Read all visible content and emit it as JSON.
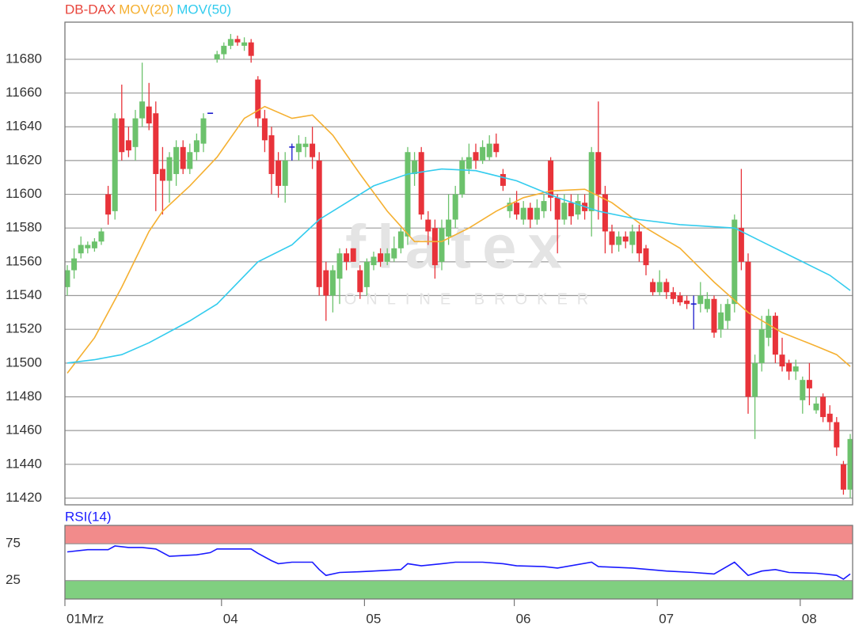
{
  "chart_data": [
    {
      "type": "candlestick",
      "series": [
        {
          "name": "DB-DAX",
          "color": "#e8453c",
          "open": [
            11545,
            11555,
            11565,
            11568,
            11568,
            11572,
            11600,
            11590,
            11645,
            11632,
            11628,
            11645,
            11652,
            11648,
            11615,
            11608,
            11612,
            11628,
            11615,
            11625,
            11630,
            11648,
            11680,
            11683,
            11688,
            11692,
            11688,
            11690,
            11668,
            11645,
            11635,
            11620,
            11605,
            11628,
            11625,
            11628,
            11630,
            11620,
            11555,
            11540,
            11550,
            11565,
            11568,
            11555,
            11545,
            11558,
            11565,
            11560,
            11562,
            11568,
            11575,
            11612,
            11625,
            11585,
            11580,
            11560,
            11575,
            11585,
            11600,
            11615,
            11625,
            11620,
            11622,
            11630,
            11612,
            11590,
            11595,
            11585,
            11592,
            11585,
            11590,
            11620,
            11598,
            11585,
            11595,
            11588,
            11595,
            11590,
            11625,
            11600,
            11578,
            11570,
            11575,
            11570,
            11578,
            11568,
            11548,
            11542,
            11548,
            11542,
            11540,
            11537,
            11535,
            11535,
            11532,
            11538,
            11520,
            11525,
            11535,
            11580,
            11560,
            11480,
            11500,
            11515,
            11528,
            11505,
            11500,
            11495,
            11478,
            11490,
            11472,
            11480,
            11470,
            11465,
            11440,
            11425
          ],
          "high": [
            11558,
            11568,
            11575,
            11572,
            11574,
            11580,
            11605,
            11648,
            11665,
            11640,
            11650,
            11678,
            11666,
            11655,
            11628,
            11625,
            11632,
            11632,
            11630,
            11636,
            11648,
            11648,
            11685,
            11690,
            11695,
            11694,
            11693,
            11692,
            11670,
            11650,
            11640,
            11625,
            11625,
            11630,
            11635,
            11634,
            11640,
            11625,
            11560,
            11558,
            11568,
            11568,
            11568,
            11558,
            11562,
            11566,
            11568,
            11568,
            11575,
            11580,
            11628,
            11625,
            11628,
            11590,
            11585,
            11585,
            11600,
            11605,
            11622,
            11630,
            11630,
            11632,
            11635,
            11636,
            11615,
            11598,
            11602,
            11596,
            11595,
            11597,
            11600,
            11622,
            11600,
            11600,
            11600,
            11600,
            11600,
            11628,
            11655,
            11605,
            11582,
            11578,
            11578,
            11582,
            11582,
            11570,
            11550,
            11555,
            11550,
            11545,
            11542,
            11540,
            11540,
            11548,
            11542,
            11540,
            11535,
            11538,
            11588,
            11615,
            11565,
            11505,
            11528,
            11532,
            11530,
            11515,
            11502,
            11502,
            11492,
            11500,
            11480,
            11482,
            11475,
            11468,
            11442,
            11458
          ],
          "low": [
            11540,
            11550,
            11562,
            11565,
            11566,
            11570,
            11582,
            11585,
            11620,
            11622,
            11620,
            11640,
            11638,
            11590,
            11588,
            11595,
            11605,
            11612,
            11612,
            11620,
            11625,
            11648,
            11678,
            11680,
            11686,
            11688,
            11685,
            11678,
            11640,
            11625,
            11600,
            11598,
            11595,
            11620,
            11620,
            11622,
            11615,
            11540,
            11525,
            11530,
            11535,
            11555,
            11560,
            11538,
            11540,
            11555,
            11557,
            11558,
            11560,
            11565,
            11570,
            11605,
            11585,
            11570,
            11550,
            11555,
            11570,
            11580,
            11598,
            11612,
            11615,
            11618,
            11620,
            11622,
            11602,
            11586,
            11585,
            11582,
            11580,
            11582,
            11586,
            11590,
            11565,
            11582,
            11582,
            11585,
            11585,
            11575,
            11585,
            11565,
            11565,
            11566,
            11568,
            11565,
            11560,
            11552,
            11540,
            11540,
            11538,
            11535,
            11534,
            11532,
            11520,
            11530,
            11530,
            11515,
            11515,
            11520,
            11530,
            11555,
            11470,
            11455,
            11495,
            11510,
            11500,
            11495,
            11490,
            11490,
            11470,
            11475,
            11470,
            11465,
            11460,
            11445,
            11422,
            11420
          ],
          "close": [
            11555,
            11562,
            11570,
            11570,
            11572,
            11578,
            11588,
            11645,
            11625,
            11626,
            11645,
            11655,
            11642,
            11612,
            11608,
            11622,
            11628,
            11615,
            11625,
            11632,
            11645,
            11648,
            11683,
            11688,
            11692,
            11690,
            11690,
            11682,
            11645,
            11632,
            11612,
            11605,
            11620,
            11628,
            11630,
            11630,
            11622,
            11545,
            11540,
            11555,
            11565,
            11560,
            11560,
            11542,
            11560,
            11563,
            11560,
            11565,
            11568,
            11578,
            11625,
            11620,
            11588,
            11578,
            11558,
            11580,
            11585,
            11600,
            11620,
            11622,
            11620,
            11628,
            11630,
            11625,
            11605,
            11595,
            11588,
            11592,
            11585,
            11592,
            11596,
            11598,
            11585,
            11595,
            11587,
            11596,
            11590,
            11625,
            11600,
            11578,
            11570,
            11575,
            11572,
            11578,
            11565,
            11558,
            11542,
            11548,
            11542,
            11538,
            11536,
            11535,
            11535,
            11540,
            11538,
            11518,
            11530,
            11535,
            11585,
            11560,
            11480,
            11500,
            11520,
            11528,
            11505,
            11498,
            11495,
            11498,
            11490,
            11485,
            11476,
            11468,
            11465,
            11450,
            11425,
            11455
          ]
        },
        {
          "name": "MOV(20)",
          "color": "#f5b031",
          "x": [
            0,
            4,
            8,
            12,
            14,
            18,
            22,
            26,
            29,
            33,
            36,
            39,
            43,
            47,
            51,
            55,
            59,
            63,
            67,
            71,
            76,
            80,
            85,
            90,
            95,
            100,
            105,
            110,
            113,
            115
          ],
          "values": [
            11494,
            11515,
            11545,
            11578,
            11590,
            11605,
            11622,
            11645,
            11652,
            11645,
            11647,
            11635,
            11612,
            11590,
            11572,
            11572,
            11580,
            11590,
            11598,
            11602,
            11603,
            11595,
            11580,
            11568,
            11548,
            11530,
            11518,
            11510,
            11505,
            11498
          ]
        },
        {
          "name": "MOV(50)",
          "color": "#33ccee",
          "x": [
            0,
            4,
            8,
            12,
            18,
            22,
            28,
            33,
            37,
            41,
            45,
            50,
            55,
            60,
            66,
            72,
            78,
            84,
            90,
            98,
            102,
            108,
            112,
            115
          ],
          "values": [
            11500,
            11502,
            11505,
            11512,
            11525,
            11535,
            11560,
            11570,
            11585,
            11595,
            11605,
            11612,
            11615,
            11614,
            11608,
            11598,
            11590,
            11585,
            11582,
            11580,
            11572,
            11560,
            11552,
            11543
          ]
        }
      ],
      "up_color": "#6cc26c",
      "down_color": "#e8333a",
      "flat_color": "#1a1acc",
      "categories": [
        "01Mrz",
        null,
        null,
        null,
        null,
        null,
        null,
        null,
        null,
        null,
        null,
        null,
        null,
        null,
        null,
        null,
        null,
        null,
        null,
        null,
        null,
        null,
        null,
        "04",
        null,
        null,
        null,
        null,
        null,
        null,
        null,
        null,
        null,
        null,
        null,
        null,
        null,
        null,
        null,
        null,
        null,
        null,
        null,
        null,
        "05",
        null,
        null,
        null,
        null,
        null,
        null,
        null,
        null,
        null,
        null,
        null,
        null,
        null,
        null,
        null,
        null,
        null,
        null,
        null,
        null,
        null,
        "06",
        null,
        null,
        null,
        null,
        null,
        null,
        null,
        null,
        null,
        null,
        null,
        null,
        null,
        null,
        null,
        null,
        null,
        null,
        null,
        null,
        "07",
        null,
        null,
        null,
        null,
        null,
        null,
        null,
        null,
        null,
        null,
        null,
        null,
        null,
        null,
        null,
        null,
        null,
        null,
        null,
        null,
        "08",
        null,
        null,
        null,
        null,
        null,
        null,
        null
      ],
      "ylim": [
        11416,
        11702
      ],
      "yticks": [
        11420,
        11440,
        11460,
        11480,
        11500,
        11520,
        11540,
        11560,
        11580,
        11600,
        11620,
        11640,
        11660,
        11680
      ],
      "grid": true,
      "watermark": {
        "brand": "flatex",
        "tagline": "ONLINE BROKER"
      }
    },
    {
      "type": "line",
      "series": [
        {
          "name": "RSI(14)",
          "color": "#1a1aff",
          "x": [
            0,
            3,
            6,
            7,
            9,
            11,
            13,
            15,
            19,
            21,
            22,
            27,
            28,
            30,
            31,
            33,
            36,
            37,
            38,
            40,
            43,
            45,
            49,
            50,
            52,
            55,
            57,
            61,
            64,
            66,
            70,
            72,
            77,
            78,
            83,
            88,
            92,
            95,
            98,
            100,
            102,
            104,
            106,
            110,
            113,
            114,
            115
          ],
          "values": [
            64,
            67,
            67,
            72,
            70,
            70,
            68,
            58,
            60,
            63,
            68,
            68,
            62,
            52,
            48,
            50,
            50,
            40,
            32,
            36,
            37,
            38,
            40,
            48,
            45,
            48,
            50,
            50,
            48,
            45,
            44,
            42,
            50,
            44,
            42,
            38,
            36,
            34,
            50,
            32,
            38,
            40,
            36,
            35,
            32,
            27,
            34
          ]
        }
      ],
      "ylim": [
        0,
        100
      ],
      "yticks": [
        25,
        75
      ],
      "bands": [
        {
          "from": 75,
          "to": 100,
          "color": "#f28b8b"
        },
        {
          "from": 0,
          "to": 25,
          "color": "#80cf80"
        }
      ]
    }
  ]
}
